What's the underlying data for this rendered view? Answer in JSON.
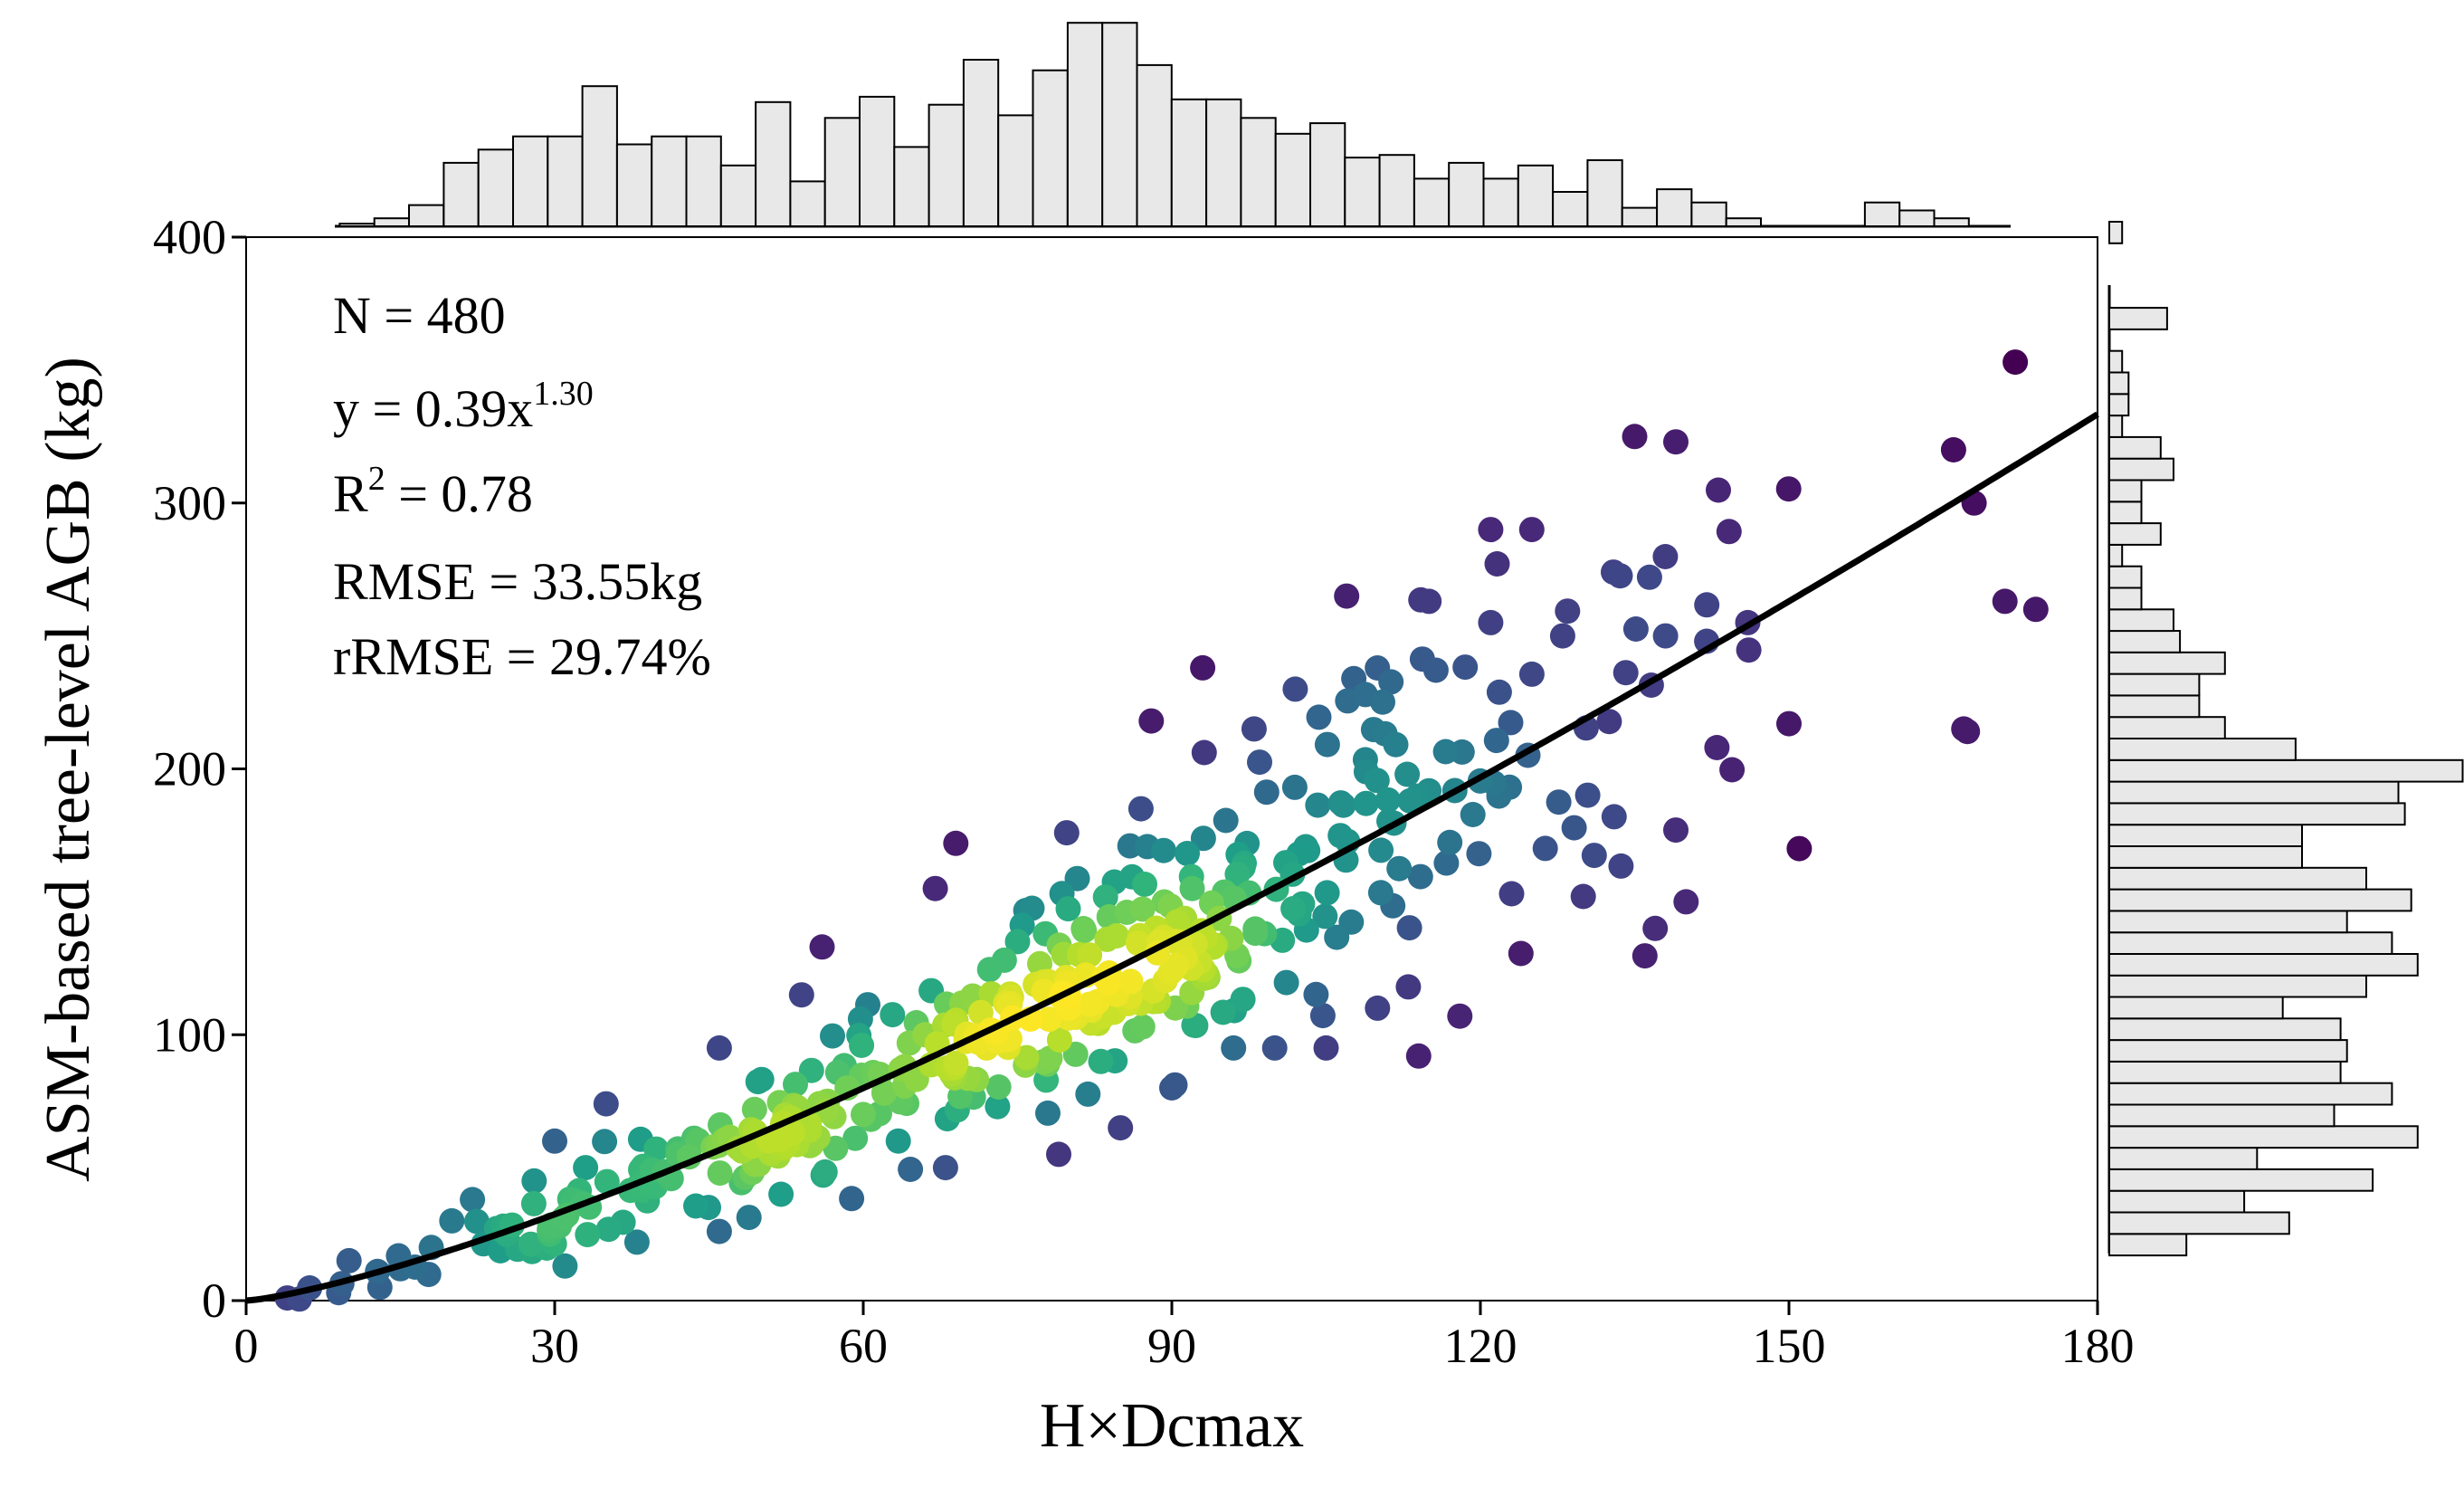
{
  "chart_data": {
    "type": "scatter",
    "xlabel": "H×Dcmax",
    "ylabel": "ASM-based tree-level AGB (kg)",
    "xlim": [
      0,
      180
    ],
    "ylim": [
      0,
      400
    ],
    "xticks": [
      "0",
      "30",
      "60",
      "90",
      "120",
      "150",
      "180"
    ],
    "yticks": [
      "0",
      "100",
      "200",
      "300",
      "400"
    ],
    "annotations": {
      "n": "N = 480",
      "eq_prefix": "y = 0.39x",
      "eq_exp": "1.30",
      "r2_prefix": "R",
      "r2_sup": "2",
      "r2_value": " = 0.78",
      "rmse": "RMSE = 33.55kg",
      "rrmse": "rRMSE = 29.74%"
    },
    "fit": {
      "a": 0.39,
      "b": 1.3,
      "x_range": [
        0,
        180
      ]
    },
    "point_count": 480,
    "colormap": "viridis (point density)",
    "highlight_points": [
      [
        4,
        1
      ],
      [
        9,
        3
      ],
      [
        10,
        15
      ],
      [
        13,
        5
      ],
      [
        15,
        12
      ],
      [
        18,
        20
      ],
      [
        20,
        30
      ],
      [
        22,
        38
      ],
      [
        25,
        28
      ],
      [
        28,
        45
      ],
      [
        30,
        60
      ],
      [
        31,
        13
      ],
      [
        33,
        50
      ],
      [
        35,
        74
      ],
      [
        38,
        22
      ],
      [
        42,
        55
      ],
      [
        46,
        26
      ],
      [
        46,
        95
      ],
      [
        52,
        40
      ],
      [
        54,
        115
      ],
      [
        56,
        133
      ],
      [
        60,
        70
      ],
      [
        64,
        88
      ],
      [
        66,
        100
      ],
      [
        67,
        155
      ],
      [
        68,
        50
      ],
      [
        69,
        172
      ],
      [
        72,
        95
      ],
      [
        75,
        135
      ],
      [
        78,
        120
      ],
      [
        79,
        55
      ],
      [
        80,
        110
      ],
      [
        82,
        130
      ],
      [
        85,
        65
      ],
      [
        87,
        185
      ],
      [
        88,
        218
      ],
      [
        90,
        80
      ],
      [
        93,
        238
      ],
      [
        96,
        95
      ],
      [
        98,
        215
      ],
      [
        100,
        95
      ],
      [
        102,
        230
      ],
      [
        105,
        95
      ],
      [
        107,
        265
      ],
      [
        110,
        110
      ],
      [
        113,
        118
      ],
      [
        114,
        92
      ],
      [
        115,
        263
      ],
      [
        118,
        107
      ],
      [
        121,
        290
      ],
      [
        121,
        255
      ],
      [
        125,
        290
      ],
      [
        128,
        250
      ],
      [
        130,
        152
      ],
      [
        133,
        182
      ],
      [
        135,
        325
      ],
      [
        137,
        140
      ],
      [
        138,
        250
      ],
      [
        139,
        323
      ],
      [
        139,
        177
      ],
      [
        140,
        150
      ],
      [
        142,
        248
      ],
      [
        143,
        208
      ],
      [
        146,
        255
      ],
      [
        150,
        217
      ],
      [
        151,
        170
      ],
      [
        166,
        320
      ],
      [
        167,
        215
      ],
      [
        168,
        300
      ],
      [
        171,
        263
      ],
      [
        172,
        353
      ],
      [
        174,
        260
      ]
    ],
    "top_histogram": {
      "bin_start": 9.1,
      "bin_width": 3.37,
      "counts": [
        1,
        3,
        8,
        24,
        29,
        34,
        34,
        53,
        31,
        34,
        34,
        23,
        47,
        17,
        41,
        49,
        30,
        46,
        63,
        42,
        59,
        77,
        77,
        61,
        48,
        48,
        41,
        35,
        39,
        26,
        27,
        18,
        24,
        18,
        23,
        13,
        25,
        7,
        14,
        9,
        3,
        0,
        0,
        0,
        9,
        6,
        3
      ]
    },
    "right_histogram": {
      "bin_start": 17,
      "bin_width": 8.1,
      "counts": [
        12,
        28,
        21,
        41,
        23,
        48,
        35,
        44,
        36,
        37,
        36,
        27,
        40,
        48,
        44,
        37,
        47,
        40,
        30,
        30,
        46,
        45,
        55,
        29,
        18,
        14,
        14,
        18,
        11,
        10,
        5,
        5,
        2,
        8,
        5,
        5,
        10,
        8,
        2,
        3,
        3,
        2,
        0,
        9,
        0,
        0,
        0,
        2,
        0
      ]
    }
  }
}
